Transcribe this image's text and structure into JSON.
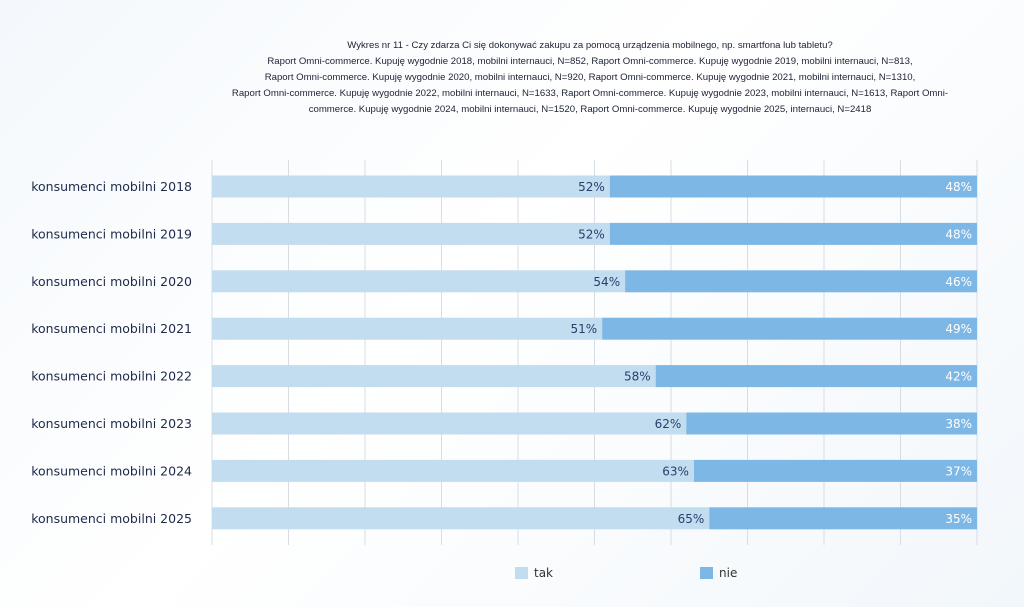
{
  "chart_data": {
    "type": "bar",
    "orientation": "horizontal",
    "stacked": true,
    "percent": true,
    "title_lines": [
      "Wykres nr 11 - Czy zdarza Ci się dokonywać zakupu za pomocą urządzenia mobilnego, np. smartfona lub tabletu?",
      "Raport Omni-commerce. Kupuję wygodnie 2018, mobilni internauci, N=852, Raport Omni-commerce. Kupuję wygodnie 2019, mobilni internauci, N=813,",
      "Raport Omni-commerce. Kupuję wygodnie 2020, mobilni internauci, N=920, Raport Omni-commerce. Kupuję wygodnie 2021, mobilni internauci, N=1310,",
      "Raport Omni-commerce. Kupuję wygodnie 2022, mobilni internauci, N=1633, Raport Omni-commerce. Kupuję wygodnie 2023, mobilni internauci, N=1613, Raport Omni-",
      "commerce. Kupuję wygodnie 2024,  mobilni internauci, N=1520, Raport Omni-commerce. Kupuję wygodnie 2025,  internauci, N=2418"
    ],
    "categories": [
      "konsumenci mobilni 2018",
      "konsumenci mobilni 2019",
      "konsumenci mobilni 2020",
      "konsumenci mobilni 2021",
      "konsumenci mobilni 2022",
      "konsumenci mobilni 2023",
      "konsumenci mobilni 2024",
      "konsumenci mobilni 2025"
    ],
    "series": [
      {
        "name": "tak",
        "color": "#c2dcf0",
        "label_color": "#2a3f6b",
        "values": [
          52,
          52,
          54,
          51,
          58,
          62,
          63,
          65
        ]
      },
      {
        "name": "nie",
        "color": "#7db7e6",
        "label_color": "#ffffff",
        "values": [
          48,
          48,
          46,
          49,
          42,
          38,
          37,
          35
        ]
      }
    ],
    "xlim": [
      0,
      100
    ],
    "grid": true,
    "legend_position": "bottom"
  }
}
